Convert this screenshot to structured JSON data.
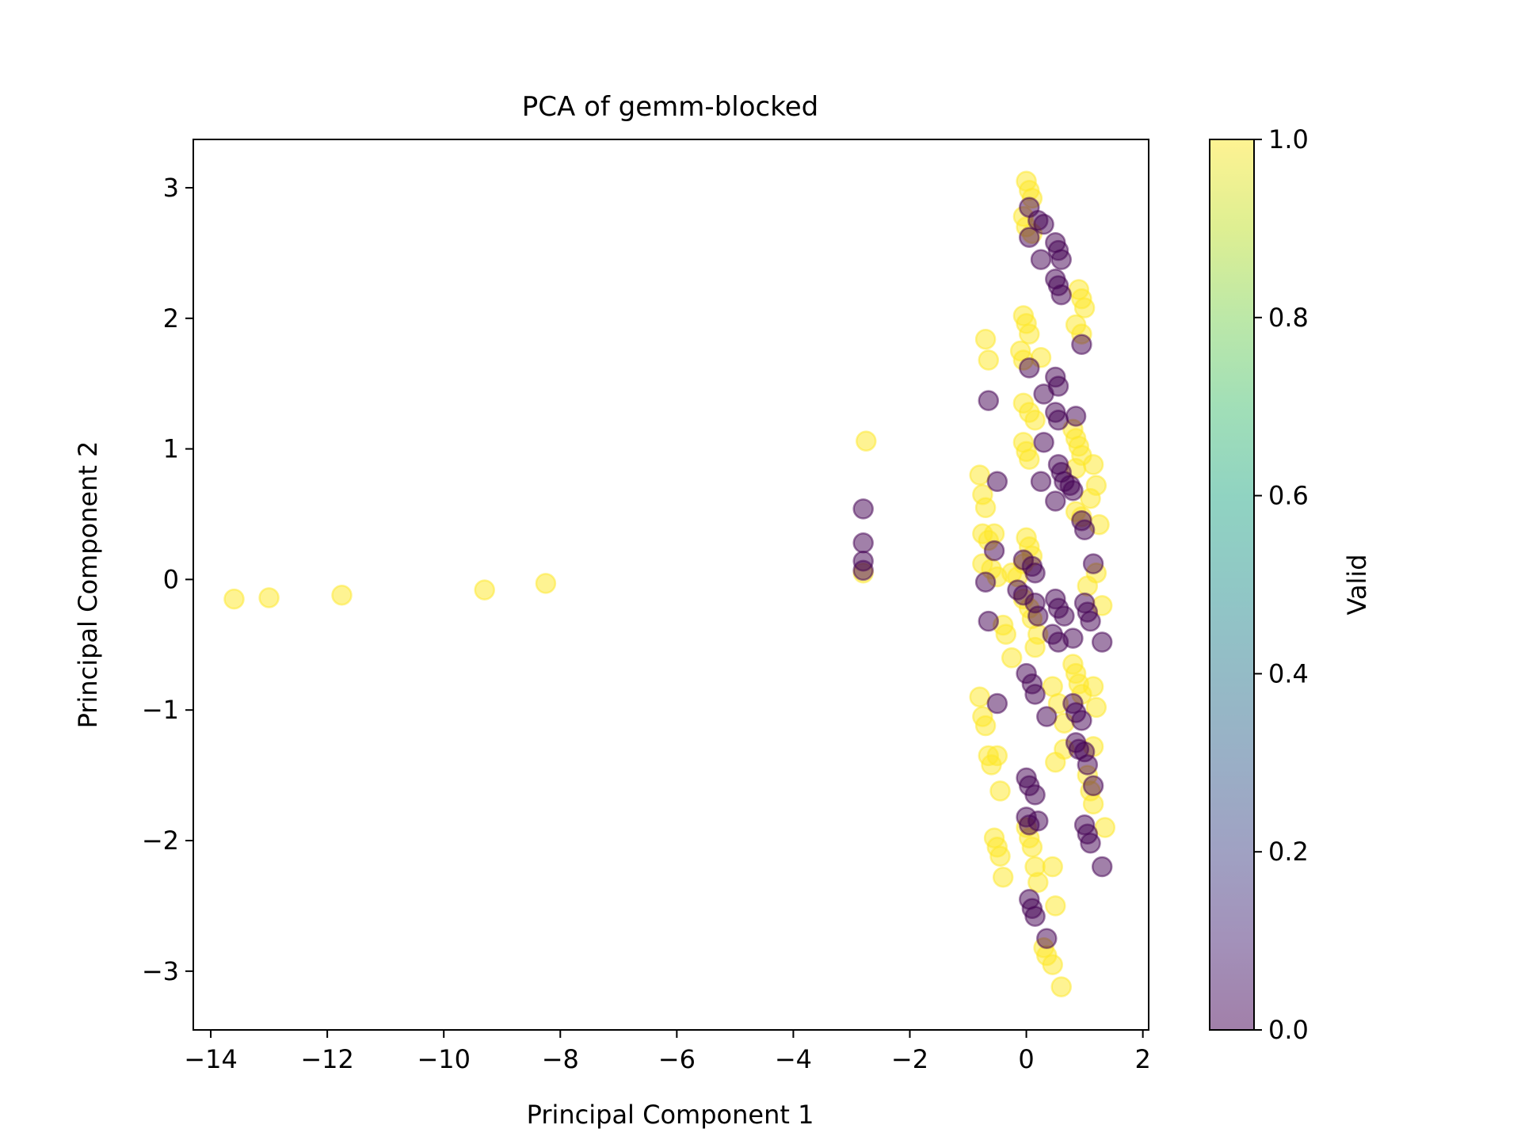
{
  "chart_data": {
    "type": "scatter",
    "title": "PCA of gemm-blocked",
    "xlabel": "Principal Component 1",
    "ylabel": "Principal Component 2",
    "xlim": [
      -14.3,
      2.1
    ],
    "ylim": [
      -3.45,
      3.37
    ],
    "xticks": [
      -14,
      -12,
      -10,
      -8,
      -6,
      -4,
      -2,
      0,
      2
    ],
    "yticks": [
      -3,
      -2,
      -1,
      0,
      1,
      2,
      3
    ],
    "grid": false,
    "point_alpha": 0.5,
    "colorbar": {
      "label": "Valid",
      "range": [
        0.0,
        1.0
      ],
      "ticks": [
        "0.0",
        "0.2",
        "0.4",
        "0.6",
        "0.8",
        "1.0"
      ],
      "colormap": "viridis"
    },
    "colors": {
      "valid_0": "#440154",
      "valid_1": "#fde725"
    },
    "series": [
      {
        "valid": 1,
        "points": [
          [
            -13.6,
            -0.15
          ],
          [
            -13.0,
            -0.14
          ],
          [
            -11.75,
            -0.12
          ],
          [
            -9.3,
            -0.08
          ],
          [
            -8.25,
            -0.03
          ],
          [
            -2.75,
            1.06
          ],
          [
            -2.8,
            0.05
          ],
          [
            0.0,
            3.05
          ],
          [
            0.05,
            2.98
          ],
          [
            0.1,
            2.92
          ],
          [
            -0.05,
            2.78
          ],
          [
            0.0,
            2.7
          ],
          [
            0.1,
            2.65
          ],
          [
            0.9,
            2.22
          ],
          [
            0.95,
            2.15
          ],
          [
            1.0,
            2.08
          ],
          [
            0.85,
            1.95
          ],
          [
            0.95,
            1.88
          ],
          [
            -0.05,
            2.02
          ],
          [
            0.0,
            1.96
          ],
          [
            0.05,
            1.88
          ],
          [
            -0.1,
            1.75
          ],
          [
            -0.05,
            1.68
          ],
          [
            0.25,
            1.7
          ],
          [
            -0.7,
            1.84
          ],
          [
            -0.65,
            1.68
          ],
          [
            -0.05,
            1.35
          ],
          [
            0.05,
            1.28
          ],
          [
            0.15,
            1.22
          ],
          [
            -0.05,
            1.05
          ],
          [
            0.0,
            0.98
          ],
          [
            0.05,
            0.92
          ],
          [
            0.8,
            1.15
          ],
          [
            0.85,
            1.08
          ],
          [
            0.9,
            1.02
          ],
          [
            0.95,
            0.95
          ],
          [
            0.85,
            0.85
          ],
          [
            1.15,
            0.88
          ],
          [
            1.2,
            0.72
          ],
          [
            1.1,
            0.62
          ],
          [
            1.25,
            0.42
          ],
          [
            0.95,
            0.48
          ],
          [
            0.85,
            0.52
          ],
          [
            -0.8,
            0.8
          ],
          [
            -0.75,
            0.65
          ],
          [
            -0.7,
            0.55
          ],
          [
            -0.75,
            0.35
          ],
          [
            -0.65,
            0.3
          ],
          [
            -0.55,
            0.35
          ],
          [
            -0.75,
            0.12
          ],
          [
            -0.6,
            0.08
          ],
          [
            -0.5,
            0.02
          ],
          [
            0.0,
            0.32
          ],
          [
            0.05,
            0.25
          ],
          [
            0.1,
            0.18
          ],
          [
            -0.05,
            0.12
          ],
          [
            -0.25,
            0.05
          ],
          [
            -0.15,
            0.02
          ],
          [
            -0.05,
            -0.15
          ],
          [
            0.05,
            -0.22
          ],
          [
            0.1,
            -0.3
          ],
          [
            0.2,
            -0.42
          ],
          [
            0.15,
            -0.52
          ],
          [
            -0.4,
            -0.35
          ],
          [
            -0.35,
            -0.42
          ],
          [
            -0.25,
            -0.6
          ],
          [
            1.2,
            0.05
          ],
          [
            1.3,
            -0.2
          ],
          [
            1.05,
            -0.05
          ],
          [
            0.8,
            -0.65
          ],
          [
            0.85,
            -0.72
          ],
          [
            0.9,
            -0.8
          ],
          [
            0.95,
            -0.88
          ],
          [
            1.15,
            -0.82
          ],
          [
            1.2,
            -0.98
          ],
          [
            0.45,
            -0.82
          ],
          [
            0.55,
            -0.95
          ],
          [
            0.65,
            -1.1
          ],
          [
            -0.8,
            -0.9
          ],
          [
            -0.75,
            -1.05
          ],
          [
            -0.7,
            -1.12
          ],
          [
            -0.65,
            -1.35
          ],
          [
            -0.6,
            -1.42
          ],
          [
            -0.5,
            -1.35
          ],
          [
            -0.45,
            -1.62
          ],
          [
            0.5,
            -1.4
          ],
          [
            0.65,
            -1.3
          ],
          [
            1.15,
            -1.28
          ],
          [
            1.05,
            -1.5
          ],
          [
            1.1,
            -1.62
          ],
          [
            1.15,
            -1.72
          ],
          [
            1.35,
            -1.9
          ],
          [
            -0.55,
            -1.98
          ],
          [
            -0.5,
            -2.05
          ],
          [
            -0.45,
            -2.12
          ],
          [
            -0.4,
            -2.28
          ],
          [
            0.0,
            -1.9
          ],
          [
            0.05,
            -1.98
          ],
          [
            0.1,
            -2.05
          ],
          [
            0.15,
            -2.2
          ],
          [
            0.2,
            -2.32
          ],
          [
            0.45,
            -2.2
          ],
          [
            0.5,
            -2.5
          ],
          [
            0.3,
            -2.82
          ],
          [
            0.35,
            -2.88
          ],
          [
            0.45,
            -2.95
          ],
          [
            0.6,
            -3.12
          ]
        ]
      },
      {
        "valid": 0,
        "points": [
          [
            -2.8,
            0.54
          ],
          [
            -2.8,
            0.28
          ],
          [
            -2.8,
            0.14
          ],
          [
            -2.8,
            0.07
          ],
          [
            0.05,
            2.85
          ],
          [
            0.2,
            2.75
          ],
          [
            0.3,
            2.72
          ],
          [
            0.05,
            2.62
          ],
          [
            0.5,
            2.58
          ],
          [
            0.55,
            2.52
          ],
          [
            0.6,
            2.45
          ],
          [
            0.25,
            2.45
          ],
          [
            0.5,
            2.3
          ],
          [
            0.55,
            2.25
          ],
          [
            0.6,
            2.18
          ],
          [
            0.95,
            1.8
          ],
          [
            0.05,
            1.62
          ],
          [
            0.5,
            1.55
          ],
          [
            0.55,
            1.48
          ],
          [
            0.3,
            1.42
          ],
          [
            -0.65,
            1.37
          ],
          [
            0.5,
            1.28
          ],
          [
            0.55,
            1.22
          ],
          [
            0.85,
            1.25
          ],
          [
            0.3,
            1.05
          ],
          [
            0.55,
            0.88
          ],
          [
            0.6,
            0.82
          ],
          [
            0.25,
            0.75
          ],
          [
            -0.5,
            0.75
          ],
          [
            0.65,
            0.75
          ],
          [
            0.75,
            0.72
          ],
          [
            0.8,
            0.68
          ],
          [
            0.5,
            0.6
          ],
          [
            0.95,
            0.45
          ],
          [
            1.0,
            0.38
          ],
          [
            1.15,
            0.12
          ],
          [
            -0.55,
            0.22
          ],
          [
            -0.05,
            0.15
          ],
          [
            0.1,
            0.1
          ],
          [
            0.15,
            0.05
          ],
          [
            -0.7,
            -0.02
          ],
          [
            -0.15,
            -0.08
          ],
          [
            -0.05,
            -0.12
          ],
          [
            0.15,
            -0.18
          ],
          [
            0.5,
            -0.15
          ],
          [
            0.55,
            -0.22
          ],
          [
            0.65,
            -0.28
          ],
          [
            1.0,
            -0.18
          ],
          [
            1.05,
            -0.25
          ],
          [
            1.1,
            -0.32
          ],
          [
            0.2,
            -0.28
          ],
          [
            -0.65,
            -0.32
          ],
          [
            0.45,
            -0.42
          ],
          [
            0.55,
            -0.48
          ],
          [
            0.8,
            -0.45
          ],
          [
            1.3,
            -0.48
          ],
          [
            0.0,
            -0.72
          ],
          [
            0.1,
            -0.8
          ],
          [
            0.15,
            -0.88
          ],
          [
            -0.5,
            -0.95
          ],
          [
            0.35,
            -1.05
          ],
          [
            0.8,
            -0.95
          ],
          [
            0.85,
            -1.02
          ],
          [
            0.95,
            -1.08
          ],
          [
            0.85,
            -1.25
          ],
          [
            0.9,
            -1.3
          ],
          [
            1.0,
            -1.32
          ],
          [
            1.05,
            -1.42
          ],
          [
            0.0,
            -1.52
          ],
          [
            0.05,
            -1.58
          ],
          [
            0.15,
            -1.65
          ],
          [
            1.15,
            -1.58
          ],
          [
            0.0,
            -1.82
          ],
          [
            0.05,
            -1.88
          ],
          [
            0.2,
            -1.85
          ],
          [
            1.0,
            -1.88
          ],
          [
            1.05,
            -1.95
          ],
          [
            1.1,
            -2.02
          ],
          [
            1.3,
            -2.2
          ],
          [
            0.05,
            -2.45
          ],
          [
            0.1,
            -2.52
          ],
          [
            0.15,
            -2.58
          ],
          [
            0.35,
            -2.75
          ]
        ]
      }
    ]
  }
}
